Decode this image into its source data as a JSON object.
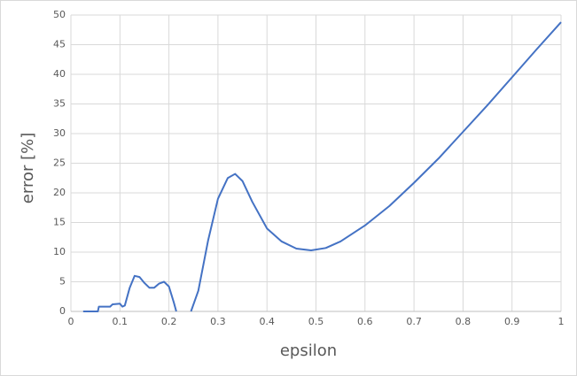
{
  "chart_data": {
    "type": "line",
    "x_label": "epsilon",
    "y_label": "error [%]",
    "x": [
      0.025,
      0.055,
      0.057,
      0.08,
      0.085,
      0.1,
      0.105,
      0.11,
      0.12,
      0.13,
      0.14,
      0.15,
      0.16,
      0.17,
      0.18,
      0.19,
      0.2,
      0.21,
      0.215,
      0.23,
      0.245,
      0.26,
      0.28,
      0.3,
      0.32,
      0.335,
      0.35,
      0.37,
      0.4,
      0.43,
      0.46,
      0.49,
      0.52,
      0.55,
      0.6,
      0.65,
      0.7,
      0.75,
      0.8,
      0.85,
      0.9,
      0.95,
      1.0
    ],
    "series": [
      {
        "name": "error",
        "color": "#4472c4",
        "values": [
          0,
          0,
          0.8,
          0.8,
          1.2,
          1.3,
          0.8,
          1.0,
          4,
          6.0,
          5.8,
          4.8,
          4.0,
          4.0,
          4.7,
          5.0,
          4.2,
          1.5,
          0,
          null,
          0,
          3.5,
          12,
          19,
          22.5,
          23.2,
          22,
          18.5,
          14,
          11.8,
          10.6,
          10.3,
          10.7,
          11.8,
          14.5,
          17.8,
          21.7,
          25.8,
          30.3,
          34.8,
          39.5,
          44.2,
          48.8
        ]
      }
    ],
    "xlim": [
      0,
      1
    ],
    "xticks": [
      0,
      0.1,
      0.2,
      0.3,
      0.4,
      0.5,
      0.6,
      0.7,
      0.8,
      0.9,
      1
    ],
    "ylim": [
      0,
      50
    ],
    "yticks": [
      0,
      5,
      10,
      15,
      20,
      25,
      30,
      35,
      40,
      45,
      50
    ],
    "grid": true
  }
}
